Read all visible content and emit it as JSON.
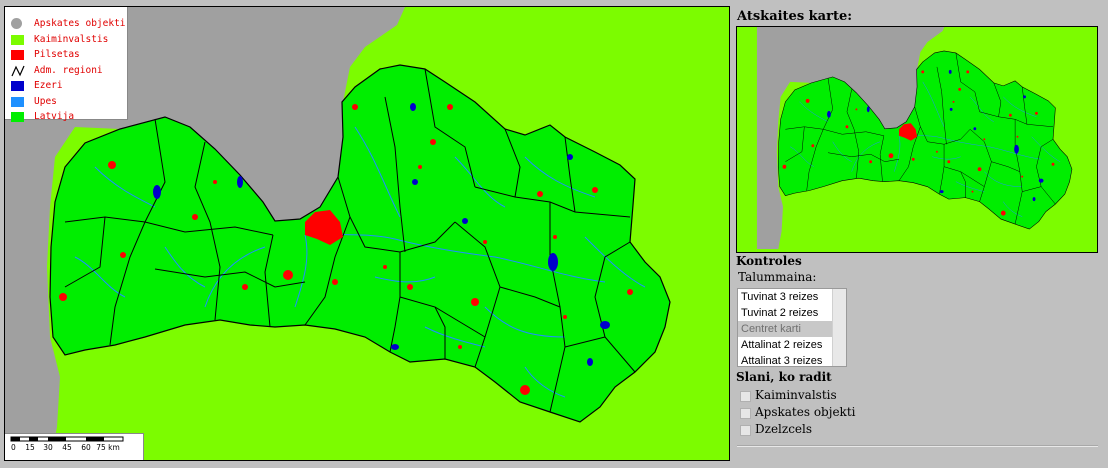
{
  "legend": {
    "items": [
      {
        "label": "Apskates objekti",
        "color": "#a0a0a0",
        "shape": "circle"
      },
      {
        "label": "Kaiminvalstis",
        "color": "#7cfc00",
        "shape": "rect"
      },
      {
        "label": "Pilsetas",
        "color": "#ff0000",
        "shape": "rect"
      },
      {
        "label": "Adm. regioni",
        "color": "#000000",
        "shape": "line"
      },
      {
        "label": "Ezeri",
        "color": "#0000cc",
        "shape": "rect"
      },
      {
        "label": "Upes",
        "color": "#1e90ff",
        "shape": "rect"
      },
      {
        "label": "Latvija",
        "color": "#00ee00",
        "shape": "rect"
      }
    ]
  },
  "scale": {
    "ticks": [
      "0",
      "15",
      "30",
      "45",
      "60",
      "75 km"
    ]
  },
  "colors": {
    "sea": "#a0a0a0",
    "neighbors": "#7cfc00",
    "latvia": "#00ee00",
    "cities": "#ff0000",
    "lakes": "#0000cc",
    "rivers": "#1e90ff",
    "borders": "#000000"
  },
  "overview": {
    "title": "Atskaites karte:"
  },
  "controls": {
    "title": "Kontroles",
    "zoom_label": "Talummaina:",
    "zoom_options": [
      "Tuvinat 3 reizes",
      "Tuvinat 2 reizes",
      "Centret karti",
      "Attalinat 2 reizes",
      "Attalinat 3 reizes"
    ],
    "zoom_selected": "Centret karti"
  },
  "layers": {
    "title": "Slani, ko radit",
    "items": [
      {
        "label": "Kaiminvalstis",
        "checked": false
      },
      {
        "label": "Apskates objekti",
        "checked": false
      },
      {
        "label": "Dzelzcels",
        "checked": false
      }
    ]
  }
}
